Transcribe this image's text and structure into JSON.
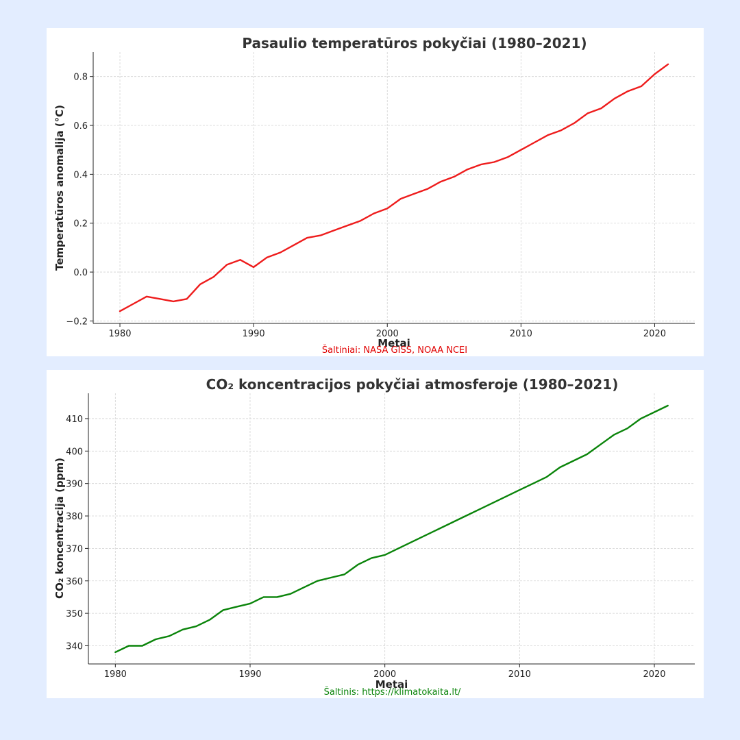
{
  "chart_data": [
    {
      "type": "line",
      "title": "Pasaulio temperatūros pokyčiai (1980–2021)",
      "xlabel": "Metai",
      "ylabel": "Temperatūros anomalija (°C)",
      "source": "Šaltiniai: NASA GISS, NOAA NCEI",
      "xlim": [
        1978,
        2023
      ],
      "ylim": [
        -0.21,
        0.9
      ],
      "x_ticks": [
        1980,
        1990,
        2000,
        2010,
        2020
      ],
      "y_ticks": [
        -0.2,
        0.0,
        0.2,
        0.4,
        0.6,
        0.8
      ],
      "y_tick_labels": [
        "−0.2",
        "0.0",
        "0.2",
        "0.4",
        "0.6",
        "0.8"
      ],
      "grid": true,
      "color": "#ee1c1c",
      "x": [
        1980,
        1981,
        1982,
        1983,
        1984,
        1985,
        1986,
        1987,
        1988,
        1989,
        1990,
        1991,
        1992,
        1993,
        1994,
        1995,
        1996,
        1997,
        1998,
        1999,
        2000,
        2001,
        2002,
        2003,
        2004,
        2005,
        2006,
        2007,
        2008,
        2009,
        2010,
        2011,
        2012,
        2013,
        2014,
        2015,
        2016,
        2017,
        2018,
        2019,
        2020,
        2021
      ],
      "values": [
        -0.16,
        -0.13,
        -0.1,
        -0.11,
        -0.12,
        -0.11,
        -0.05,
        -0.02,
        0.03,
        0.05,
        0.02,
        0.06,
        0.08,
        0.11,
        0.14,
        0.15,
        0.17,
        0.19,
        0.21,
        0.24,
        0.26,
        0.3,
        0.32,
        0.34,
        0.37,
        0.39,
        0.42,
        0.44,
        0.45,
        0.47,
        0.5,
        0.53,
        0.56,
        0.58,
        0.61,
        0.65,
        0.67,
        0.71,
        0.74,
        0.76,
        0.81,
        0.85
      ]
    },
    {
      "type": "line",
      "title": "CO₂ koncentracijos pokyčiai atmosferoje (1980–2021)",
      "xlabel": "Metai",
      "ylabel": "CO₂ koncentracija (ppm)",
      "source": "Šaltinis: https://klimatokaita.lt/",
      "xlim": [
        1978,
        2023
      ],
      "ylim": [
        334.4,
        417.8
      ],
      "x_ticks": [
        1980,
        1990,
        2000,
        2010,
        2020
      ],
      "y_ticks": [
        340,
        350,
        360,
        370,
        380,
        390,
        400,
        410
      ],
      "y_tick_labels": [
        "340",
        "350",
        "360",
        "370",
        "380",
        "390",
        "400",
        "410"
      ],
      "grid": true,
      "color": "#0a840a",
      "x": [
        1980,
        1981,
        1982,
        1983,
        1984,
        1985,
        1986,
        1987,
        1988,
        1989,
        1990,
        1991,
        1992,
        1993,
        1994,
        1995,
        1996,
        1997,
        1998,
        1999,
        2000,
        2001,
        2002,
        2003,
        2004,
        2005,
        2006,
        2007,
        2008,
        2009,
        2010,
        2011,
        2012,
        2013,
        2014,
        2015,
        2016,
        2017,
        2018,
        2019,
        2020,
        2021
      ],
      "values": [
        338,
        340,
        340,
        342,
        343,
        345,
        346,
        348,
        351,
        352,
        353,
        355,
        355,
        356,
        358,
        360,
        361,
        362,
        365,
        367,
        368,
        370,
        372,
        374,
        376,
        378,
        380,
        382,
        384,
        386,
        388,
        390,
        392,
        395,
        397,
        399,
        402,
        405,
        407,
        410,
        412,
        414
      ]
    }
  ]
}
